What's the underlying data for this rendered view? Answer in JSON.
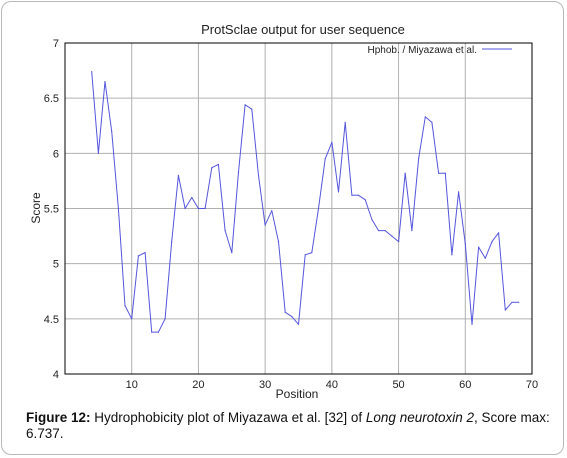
{
  "chart_data": {
    "type": "line",
    "title": "ProtSclae output for user sequence",
    "xlabel": "Position",
    "ylabel": "Score",
    "xlim": [
      0,
      70
    ],
    "ylim": [
      4,
      7
    ],
    "xticks": [
      "10",
      "20",
      "30",
      "40",
      "50",
      "60",
      "70"
    ],
    "yticks": [
      "4",
      "4.5",
      "5",
      "5.5",
      "6",
      "6.5",
      "7"
    ],
    "grid": true,
    "legend_position": "top-right",
    "series": [
      {
        "name": "Hphob. / Miyazawa et al.",
        "color": "#5555dd",
        "x": [
          4,
          5,
          6,
          7,
          8,
          9,
          10,
          11,
          12,
          13,
          14,
          15,
          16,
          17,
          18,
          19,
          20,
          21,
          22,
          23,
          24,
          25,
          26,
          27,
          28,
          29,
          30,
          31,
          32,
          33,
          34,
          35,
          36,
          37,
          38,
          39,
          40,
          41,
          42,
          43,
          44,
          45,
          46,
          47,
          48,
          49,
          50,
          51,
          52,
          53,
          54,
          55,
          56,
          57,
          58,
          59,
          60,
          61,
          62,
          63,
          64,
          65,
          66,
          67,
          68
        ],
        "y": [
          6.74,
          6.0,
          6.65,
          6.2,
          5.5,
          4.62,
          4.5,
          5.07,
          5.1,
          4.38,
          4.38,
          4.5,
          5.2,
          5.8,
          5.5,
          5.6,
          5.5,
          5.5,
          5.87,
          5.9,
          5.3,
          5.1,
          5.83,
          6.44,
          6.4,
          5.8,
          5.35,
          5.48,
          5.2,
          4.56,
          4.52,
          4.45,
          5.08,
          5.1,
          5.5,
          5.95,
          6.1,
          5.65,
          6.28,
          5.62,
          5.62,
          5.58,
          5.4,
          5.3,
          5.3,
          5.25,
          5.2,
          5.82,
          5.3,
          5.95,
          6.33,
          6.28,
          5.82,
          5.82,
          5.08,
          5.65,
          5.18,
          4.45,
          5.15,
          5.05,
          5.2,
          5.28,
          4.58,
          4.65,
          4.65
        ]
      }
    ]
  },
  "caption": {
    "label": "Figure 12:",
    "text_before": " Hydrophobicity plot of Miyazawa et al. [32] of ",
    "italic": "Long neurotoxin 2",
    "text_after": ", Score max: 6.737."
  }
}
